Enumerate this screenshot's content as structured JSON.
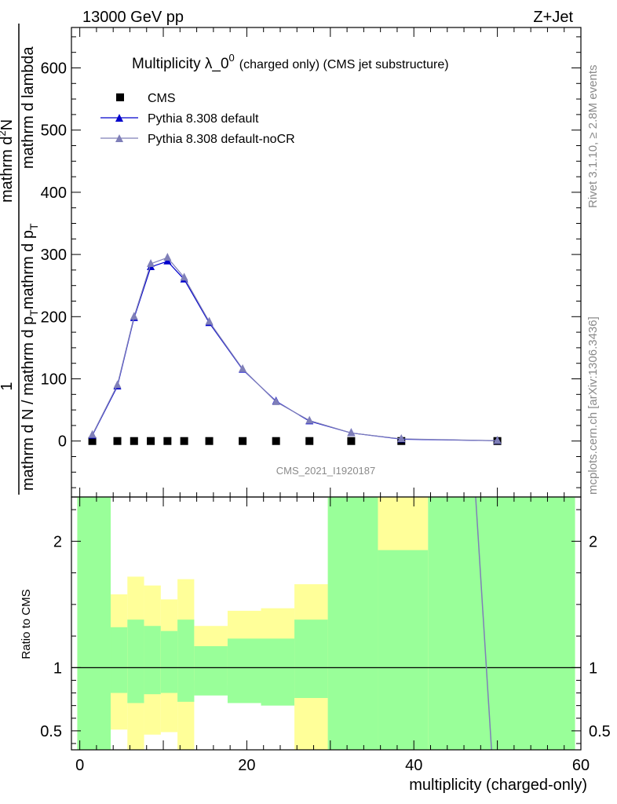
{
  "header": {
    "left": "13000 GeV pp",
    "right": "Z+Jet"
  },
  "side_text": {
    "rivet": "Rivet 3.1.10, ≥ 2.8M events",
    "mcplots": "mcplots.cern.ch [arXiv:1306.3436]"
  },
  "watermark": "CMS_2021_I1920187",
  "colors": {
    "cms": "#000000",
    "default": "#0000cc",
    "nocr": "#7f7fb8",
    "band_inner": "#99ff99",
    "band_outer": "#ffff99"
  },
  "chart_data": [
    {
      "type": "line",
      "title_main": "Multiplicity λ_0",
      "title_sup": "0",
      "title_sub": "(charged only) (CMS jet substructure)",
      "ylabel": {
        "num1": "1",
        "den1": "mathrm d N / mathrm d p",
        "den1_sub": "T",
        "den1_tail": "mathrm d p",
        "den1_sub2": "T",
        "den1_end": "mathrm d lambda",
        "frac2_num": "mathrm d",
        "frac2_num_sup": "2",
        "frac2_num_end": "N",
        "frac2_den_start": "mathrm d p",
        "frac2_den_sub": "T",
        "frac2_den_end": "mathrm d lambda"
      },
      "xlim": [
        -1,
        60
      ],
      "ylim": [
        -90,
        665
      ],
      "yticks": [
        0,
        100,
        200,
        300,
        400,
        500,
        600
      ],
      "legend_position": "top-left",
      "series": [
        {
          "name": "CMS",
          "marker": "square",
          "x": [
            1.5,
            4.5,
            6.5,
            8.5,
            10.5,
            12.5,
            15.5,
            19.5,
            23.5,
            27.5,
            32.5,
            38.5,
            50
          ],
          "y": [
            0,
            0,
            0,
            0,
            0,
            0,
            0,
            0,
            0,
            0,
            0,
            0,
            0
          ]
        },
        {
          "name": "Pythia 8.308 default",
          "marker": "triangle",
          "x": [
            1.5,
            4.5,
            6.5,
            8.5,
            10.5,
            12.5,
            15.5,
            19.5,
            23.5,
            27.5,
            32.5,
            38.5,
            50
          ],
          "y": [
            9,
            88,
            198,
            280,
            289,
            260,
            190,
            115,
            64,
            32,
            13,
            3,
            0.5
          ]
        },
        {
          "name": "Pythia 8.308 default-noCR",
          "marker": "triangle",
          "x": [
            1.5,
            4.5,
            6.5,
            8.5,
            10.5,
            12.5,
            15.5,
            19.5,
            23.5,
            27.5,
            32.5,
            38.5,
            50
          ],
          "y": [
            10,
            90,
            200,
            285,
            295,
            263,
            192,
            116,
            63,
            33,
            13,
            3.5,
            0.6
          ]
        }
      ]
    },
    {
      "type": "area",
      "ylabel": "Ratio to CMS",
      "xlabel": "multiplicity (charged-only)",
      "xlim": [
        -1,
        60
      ],
      "ylim": [
        0.35,
        2.35
      ],
      "xticks": [
        0,
        20,
        40,
        60
      ],
      "yticks": [
        0.5,
        1,
        2
      ],
      "bins": [
        {
          "lo": -0.3,
          "hi": 3.7,
          "inner": [
            0.35,
            2.35
          ],
          "outer": [
            0.35,
            2.35
          ]
        },
        {
          "lo": 3.7,
          "hi": 5.7,
          "inner": [
            0.8,
            1.32
          ],
          "outer": [
            0.51,
            1.58
          ]
        },
        {
          "lo": 5.7,
          "hi": 7.7,
          "inner": [
            0.72,
            1.38
          ],
          "outer": [
            0.35,
            1.72
          ]
        },
        {
          "lo": 7.7,
          "hi": 9.7,
          "inner": [
            0.79,
            1.33
          ],
          "outer": [
            0.47,
            1.65
          ]
        },
        {
          "lo": 9.7,
          "hi": 11.7,
          "inner": [
            0.8,
            1.29
          ],
          "outer": [
            0.49,
            1.54
          ]
        },
        {
          "lo": 11.7,
          "hi": 13.7,
          "inner": [
            0.73,
            1.38
          ],
          "outer": [
            0.35,
            1.7
          ]
        },
        {
          "lo": 13.7,
          "hi": 17.7,
          "inner": [
            0.78,
            1.17
          ],
          "outer": [
            0.9,
            1.33
          ]
        },
        {
          "lo": 17.7,
          "hi": 21.7,
          "inner": [
            0.72,
            1.23
          ],
          "outer": [
            0.86,
            1.45
          ]
        },
        {
          "lo": 21.7,
          "hi": 25.7,
          "inner": [
            0.7,
            1.23
          ],
          "outer": [
            0.85,
            1.47
          ]
        },
        {
          "lo": 25.7,
          "hi": 29.7,
          "inner": [
            0.76,
            1.38
          ],
          "outer": [
            0.35,
            1.66
          ]
        },
        {
          "lo": 29.7,
          "hi": 35.7,
          "inner": [
            0.35,
            2.35
          ],
          "outer": [
            0.35,
            2.35
          ]
        },
        {
          "lo": 35.7,
          "hi": 41.7,
          "inner": [
            0.35,
            1.93
          ],
          "outer": [
            0.35,
            2.35
          ]
        },
        {
          "lo": 41.7,
          "hi": 59.3,
          "inner": [
            0.35,
            2.35
          ],
          "outer": [
            0.35,
            2.35
          ]
        }
      ],
      "ratio_line": {
        "x": [
          47.4,
          49.3
        ],
        "y": [
          2.35,
          0.35
        ]
      }
    }
  ]
}
